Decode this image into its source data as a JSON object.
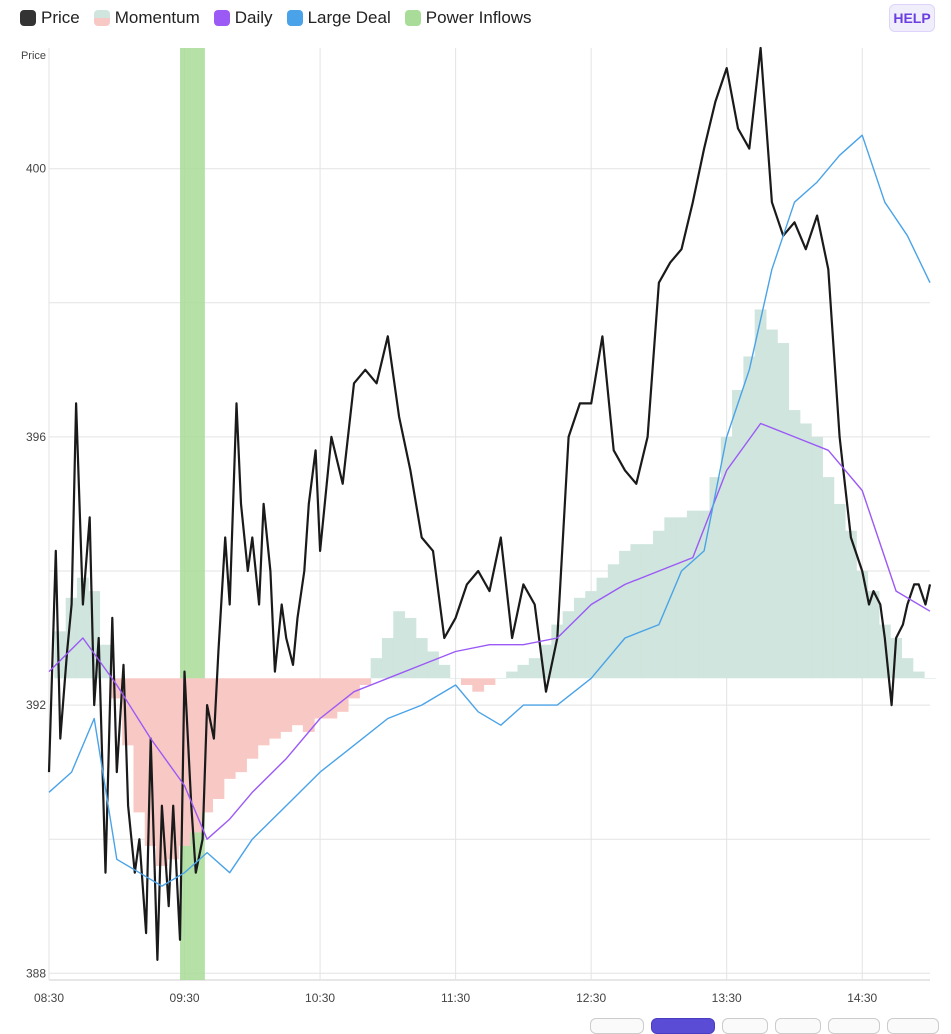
{
  "legend": [
    {
      "label": "Price",
      "color": "#333333",
      "icon": "square-swatch"
    },
    {
      "label": "Momentum",
      "color": "#f8c8c4",
      "color2": "#cfe5dd",
      "icon": "split-swatch"
    },
    {
      "label": "Daily",
      "color": "#9b59f6",
      "icon": "square-swatch"
    },
    {
      "label": "Large Deal",
      "color": "#4aa3e8",
      "icon": "square-swatch"
    },
    {
      "label": "Power Inflows",
      "color": "#a8dc98",
      "icon": "square-swatch"
    }
  ],
  "help_label": "HELP",
  "bottom_tabs": [
    {
      "active": false
    },
    {
      "active": true
    },
    {
      "active": false
    },
    {
      "active": false
    },
    {
      "active": false
    },
    {
      "active": false
    }
  ],
  "chart_data": {
    "type": "line",
    "ylabel": "Price",
    "ylim": [
      387.9,
      401.8
    ],
    "y_ticks": [
      388,
      392,
      396,
      400
    ],
    "xlim": [
      "08:30",
      "15:00"
    ],
    "x_ticks": [
      "08:30",
      "09:30",
      "10:30",
      "11:30",
      "12:30",
      "13:30",
      "14:30"
    ],
    "grid": true,
    "legend_position": "top-left",
    "power_inflow_band": {
      "start": "09:28",
      "end": "09:39",
      "color": "#a8dc98"
    },
    "momentum_baseline": 392.4,
    "price_axis": "left",
    "series": [
      {
        "name": "Price",
        "color": "#1a1a1a",
        "x": [
          "08:30",
          "08:33",
          "08:35",
          "08:38",
          "08:40",
          "08:42",
          "08:45",
          "08:48",
          "08:50",
          "08:52",
          "08:55",
          "08:58",
          "09:00",
          "09:03",
          "09:05",
          "09:08",
          "09:10",
          "09:13",
          "09:15",
          "09:18",
          "09:20",
          "09:23",
          "09:25",
          "09:28",
          "09:30",
          "09:33",
          "09:35",
          "09:38",
          "09:40",
          "09:43",
          "09:45",
          "09:48",
          "09:50",
          "09:53",
          "09:55",
          "09:58",
          "10:00",
          "10:03",
          "10:05",
          "10:08",
          "10:10",
          "10:13",
          "10:15",
          "10:18",
          "10:20",
          "10:23",
          "10:25",
          "10:28",
          "10:30",
          "10:35",
          "10:40",
          "10:45",
          "10:50",
          "10:55",
          "11:00",
          "11:05",
          "11:10",
          "11:15",
          "11:20",
          "11:25",
          "11:30",
          "11:35",
          "11:40",
          "11:45",
          "11:50",
          "11:55",
          "12:00",
          "12:05",
          "12:10",
          "12:15",
          "12:20",
          "12:25",
          "12:30",
          "12:35",
          "12:40",
          "12:45",
          "12:50",
          "12:55",
          "13:00",
          "13:05",
          "13:10",
          "13:15",
          "13:20",
          "13:25",
          "13:30",
          "13:35",
          "13:40",
          "13:45",
          "13:50",
          "13:55",
          "14:00",
          "14:05",
          "14:10",
          "14:15",
          "14:20",
          "14:25",
          "14:30",
          "14:33",
          "14:35",
          "14:38",
          "14:40",
          "14:43",
          "14:45",
          "14:48",
          "14:50",
          "14:53",
          "14:55",
          "14:58",
          "15:00"
        ],
        "values": [
          391.0,
          394.3,
          391.5,
          392.8,
          393.5,
          396.5,
          393.5,
          394.8,
          392.0,
          393.0,
          389.5,
          393.3,
          391.0,
          392.6,
          390.5,
          389.5,
          390.0,
          388.6,
          391.5,
          388.2,
          390.5,
          389.0,
          390.5,
          388.5,
          392.5,
          390.5,
          389.5,
          390.0,
          392.0,
          391.5,
          392.8,
          394.5,
          393.5,
          396.5,
          395.0,
          394.0,
          394.5,
          393.5,
          395.0,
          394.0,
          392.5,
          393.5,
          393.0,
          392.6,
          393.3,
          394.0,
          395.0,
          395.8,
          394.3,
          396.0,
          395.3,
          396.8,
          397.0,
          396.8,
          397.5,
          396.3,
          395.5,
          394.5,
          394.3,
          393.0,
          393.3,
          393.8,
          394.0,
          393.7,
          394.5,
          393.0,
          393.8,
          393.5,
          392.2,
          393.0,
          396.0,
          396.5,
          396.5,
          397.5,
          395.8,
          395.5,
          395.3,
          396.0,
          398.3,
          398.6,
          398.8,
          399.5,
          400.3,
          401.0,
          401.5,
          400.6,
          400.3,
          401.8,
          399.5,
          399.0,
          399.2,
          398.8,
          399.3,
          398.5,
          396.0,
          394.5,
          394.0,
          393.5,
          393.7,
          393.5,
          393.0,
          392.0,
          393.0,
          393.2,
          393.5,
          393.8,
          393.8,
          393.5,
          393.8
        ]
      },
      {
        "name": "Daily",
        "color": "#9b59f6",
        "x": [
          "08:30",
          "08:45",
          "09:00",
          "09:15",
          "09:30",
          "09:40",
          "09:50",
          "10:00",
          "10:15",
          "10:30",
          "10:45",
          "11:00",
          "11:15",
          "11:30",
          "11:45",
          "12:00",
          "12:15",
          "12:30",
          "12:45",
          "13:00",
          "13:15",
          "13:30",
          "13:45",
          "14:00",
          "14:15",
          "14:30",
          "14:45",
          "15:00"
        ],
        "values": [
          392.5,
          393.0,
          392.3,
          391.5,
          390.8,
          390.0,
          390.3,
          390.7,
          391.2,
          391.8,
          392.2,
          392.4,
          392.6,
          392.8,
          392.9,
          392.9,
          393.0,
          393.5,
          393.8,
          394.0,
          394.2,
          395.5,
          396.2,
          396.0,
          395.8,
          395.2,
          393.7,
          393.4
        ]
      },
      {
        "name": "Large Deal",
        "color": "#4aa3e8",
        "x": [
          "08:30",
          "08:40",
          "08:50",
          "09:00",
          "09:10",
          "09:20",
          "09:30",
          "09:40",
          "09:50",
          "10:00",
          "10:15",
          "10:30",
          "10:45",
          "11:00",
          "11:15",
          "11:30",
          "11:40",
          "11:50",
          "12:00",
          "12:15",
          "12:30",
          "12:45",
          "13:00",
          "13:10",
          "13:20",
          "13:30",
          "13:40",
          "13:50",
          "14:00",
          "14:10",
          "14:20",
          "14:30",
          "14:40",
          "14:50",
          "15:00"
        ],
        "values": [
          390.7,
          391.0,
          391.8,
          389.7,
          389.5,
          389.3,
          389.5,
          389.8,
          389.5,
          390.0,
          390.5,
          391.0,
          391.4,
          391.8,
          392.0,
          392.3,
          391.9,
          391.7,
          392.0,
          392.0,
          392.4,
          393.0,
          393.2,
          394.0,
          394.3,
          396.0,
          397.0,
          398.5,
          399.5,
          399.8,
          400.2,
          400.5,
          399.5,
          399.0,
          398.3
        ]
      },
      {
        "name": "Momentum",
        "type": "bar",
        "color_positive": "#cfe5dd",
        "color_negative": "#f8c8c4",
        "x": [
          "08:35",
          "08:40",
          "08:45",
          "08:50",
          "08:55",
          "09:00",
          "09:05",
          "09:10",
          "09:15",
          "09:20",
          "09:25",
          "09:30",
          "09:35",
          "09:40",
          "09:45",
          "09:50",
          "09:55",
          "10:00",
          "10:05",
          "10:10",
          "10:15",
          "10:20",
          "10:25",
          "10:30",
          "10:35",
          "10:40",
          "10:45",
          "10:50",
          "10:55",
          "11:00",
          "11:05",
          "11:10",
          "11:15",
          "11:20",
          "11:25",
          "11:30",
          "11:35",
          "11:40",
          "11:45",
          "11:50",
          "11:55",
          "12:00",
          "12:05",
          "12:10",
          "12:15",
          "12:20",
          "12:25",
          "12:30",
          "12:35",
          "12:40",
          "12:45",
          "12:50",
          "12:55",
          "13:00",
          "13:05",
          "13:10",
          "13:15",
          "13:20",
          "13:25",
          "13:30",
          "13:35",
          "13:40",
          "13:45",
          "13:50",
          "13:55",
          "14:00",
          "14:05",
          "14:10",
          "14:15",
          "14:20",
          "14:25",
          "14:30",
          "14:35",
          "14:40",
          "14:45",
          "14:50",
          "14:55",
          "15:00"
        ],
        "values": [
          0.7,
          1.2,
          1.5,
          1.3,
          0.5,
          -0.3,
          -1.0,
          -2.0,
          -2.5,
          -2.8,
          -2.7,
          -2.5,
          -2.3,
          -2.0,
          -1.8,
          -1.5,
          -1.4,
          -1.2,
          -1.0,
          -0.9,
          -0.8,
          -0.7,
          -0.8,
          -0.6,
          -0.6,
          -0.5,
          -0.3,
          -0.1,
          0.3,
          0.6,
          1.0,
          0.9,
          0.6,
          0.4,
          0.2,
          0.0,
          -0.1,
          -0.2,
          -0.1,
          0.0,
          0.1,
          0.2,
          0.3,
          0.5,
          0.8,
          1.0,
          1.2,
          1.3,
          1.5,
          1.7,
          1.9,
          2.0,
          2.0,
          2.2,
          2.4,
          2.4,
          2.5,
          2.5,
          3.0,
          3.6,
          4.3,
          4.8,
          5.5,
          5.2,
          5.0,
          4.0,
          3.8,
          3.6,
          3.0,
          2.6,
          2.2,
          1.6,
          1.3,
          0.8,
          0.6,
          0.3,
          0.1,
          0.0
        ]
      }
    ]
  }
}
